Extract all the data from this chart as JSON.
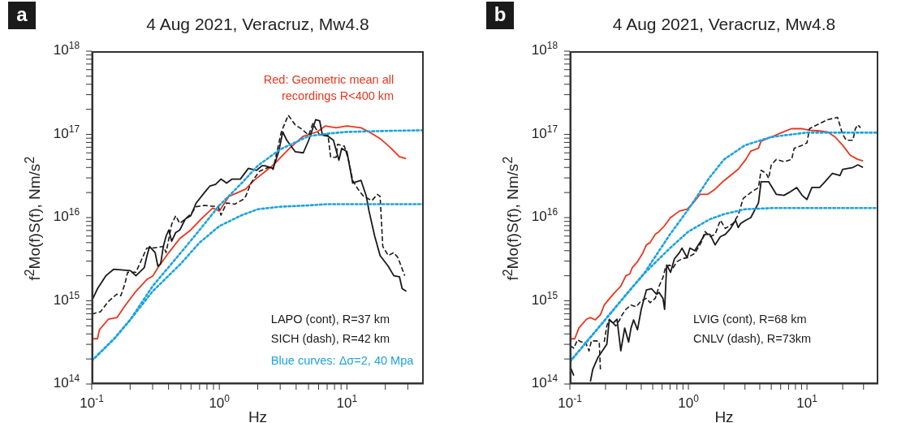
{
  "chart_data": [
    {
      "type": "line",
      "title": "4 Aug 2021, Veracruz, Mw4.8",
      "xlabel": "Hz",
      "ylabel": "f$^{2}$Mo(f)S(f), Nm/s$^{2}$",
      "log": "xy",
      "xlim": [
        0.1,
        40
      ],
      "ylim": [
        100000000000000.0,
        1e+18
      ],
      "xticks": [
        {
          "value": 0.1,
          "label": "10$^{-1}$"
        },
        {
          "value": 0.2,
          "label": null
        },
        {
          "value": 0.3,
          "label": null
        },
        {
          "value": 0.4,
          "label": null
        },
        {
          "value": 0.5,
          "label": null
        },
        {
          "value": 0.6,
          "label": null
        },
        {
          "value": 0.7,
          "label": null
        },
        {
          "value": 0.8,
          "label": null
        },
        {
          "value": 0.9,
          "label": null
        },
        {
          "value": 1,
          "label": "10$^{0}$"
        },
        {
          "value": 2,
          "label": null
        },
        {
          "value": 3,
          "label": null
        },
        {
          "value": 4,
          "label": null
        },
        {
          "value": 5,
          "label": null
        },
        {
          "value": 6,
          "label": null
        },
        {
          "value": 7,
          "label": null
        },
        {
          "value": 8,
          "label": null
        },
        {
          "value": 9,
          "label": null
        },
        {
          "value": 10,
          "label": "10$^{1}$"
        },
        {
          "value": 20,
          "label": null
        },
        {
          "value": 30,
          "label": null
        }
      ],
      "yticks": [
        {
          "value": 100000000000000.0,
          "label": "10$^{14}$"
        },
        {
          "value": 200000000000000.0,
          "label": null
        },
        {
          "value": 300000000000000.0,
          "label": null
        },
        {
          "value": 400000000000000.0,
          "label": null
        },
        {
          "value": 500000000000000.0,
          "label": null
        },
        {
          "value": 600000000000000.0,
          "label": null
        },
        {
          "value": 700000000000000.0,
          "label": null
        },
        {
          "value": 800000000000000.0,
          "label": null
        },
        {
          "value": 900000000000000.0,
          "label": null
        },
        {
          "value": 1000000000000000.0,
          "label": "10$^{15}$"
        },
        {
          "value": 2000000000000000.0,
          "label": null
        },
        {
          "value": 3000000000000000.0,
          "label": null
        },
        {
          "value": 4000000000000000.0,
          "label": null
        },
        {
          "value": 5000000000000000.0,
          "label": null
        },
        {
          "value": 6000000000000000.0,
          "label": null
        },
        {
          "value": 7000000000000000.0,
          "label": null
        },
        {
          "value": 8000000000000000.0,
          "label": null
        },
        {
          "value": 9000000000000000.0,
          "label": null
        },
        {
          "value": 1e+16,
          "label": "10$^{16}$"
        },
        {
          "value": 2e+16,
          "label": null
        },
        {
          "value": 3e+16,
          "label": null
        },
        {
          "value": 4e+16,
          "label": null
        },
        {
          "value": 5e+16,
          "label": null
        },
        {
          "value": 6e+16,
          "label": null
        },
        {
          "value": 7e+16,
          "label": null
        },
        {
          "value": 8e+16,
          "label": null
        },
        {
          "value": 9e+16,
          "label": null
        },
        {
          "value": 1e+17,
          "label": "10$^{17}$"
        },
        {
          "value": 2e+17,
          "label": null
        },
        {
          "value": 3e+17,
          "label": null
        },
        {
          "value": 4e+17,
          "label": null
        },
        {
          "value": 5e+17,
          "label": null
        },
        {
          "value": 6e+17,
          "label": null
        },
        {
          "value": 7e+17,
          "label": null
        },
        {
          "value": 8e+17,
          "label": null
        },
        {
          "value": 9e+17,
          "label": null
        },
        {
          "value": 1e+18,
          "label": "10$^{18}$"
        }
      ],
      "annotations": [
        "a",
        "Red: Geometric mean all recordings R<400 km",
        "LAPO (cont), R=37 km",
        "SICH (dash), R=42 km",
        "Blue curves: Δσ=2, 40 Mpa"
      ],
      "series": [
        {
          "color": "#e8361f",
          "line_style": "solid",
          "x": [
            0.1,
            0.111,
            0.115,
            0.135,
            0.158,
            0.182,
            0.222,
            0.27,
            0.302,
            0.33,
            0.402,
            0.49,
            0.597,
            0.73,
            0.887,
            1.0,
            1.19,
            1.61,
            1.87,
            2.51,
            2.77,
            3.55,
            4.55,
            5.82,
            6.76,
            8.24,
            10.0,
            12.9,
            14.9,
            18.2,
            22.2,
            25.7,
            29.1
          ],
          "values": [
            350000000000000.0,
            350000000000000.0,
            450000000000000.0,
            600000000000000.0,
            630000000000000.0,
            870000000000000.0,
            1300000000000000.0,
            1800000000000000.0,
            2000000000000000.0,
            2500000000000000.0,
            3800000000000000.0,
            5600000000000000.0,
            7100000000000000.0,
            9800000000000000.0,
            1.3e+16,
            1.2e+16,
            1.8e+16,
            2.2e+16,
            2.8e+16,
            4e+16,
            4.6e+16,
            6.8e+16,
            9.5e+16,
            1.07e+17,
            1.26e+17,
            1.2e+17,
            1.26e+17,
            1.2e+17,
            1.07e+17,
            8.9e+16,
            6.8e+16,
            5.4e+16,
            5.1e+16
          ]
        },
        {
          "color": "#1a1a1a",
          "line_style": "solid",
          "x": [
            0.1,
            0.111,
            0.129,
            0.149,
            0.201,
            0.222,
            0.258,
            0.27,
            0.284,
            0.314,
            0.33,
            0.347,
            0.364,
            0.383,
            0.402,
            0.423,
            0.455,
            0.49,
            0.541,
            0.597,
            0.659,
            0.765,
            0.845,
            0.933,
            1.03,
            1.14,
            1.26,
            1.46,
            1.69,
            1.96,
            2.16,
            2.27,
            2.64,
            2.92,
            3.14,
            3.38,
            3.93,
            4.55,
            5.02,
            5.69,
            6.12,
            6.43,
            7.11,
            7.84,
            8.65,
            9.1,
            10.0,
            11.1,
            12.9,
            14.2,
            14.9,
            16.5,
            18.2,
            21.1,
            23.3,
            25.8,
            27.1,
            29.2
          ],
          "values": [
            1000000000000000.0,
            1400000000000000.0,
            2000000000000000.0,
            2400000000000000.0,
            2300000000000000.0,
            2000000000000000.0,
            2500000000000000.0,
            3400000000000000.0,
            4500000000000000.0,
            3800000000000000.0,
            2600000000000000.0,
            2800000000000000.0,
            4500000000000000.0,
            6000000000000000.0,
            7100000000000000.0,
            5200000000000000.0,
            6600000000000000.0,
            7100000000000000.0,
            9600000000000000.0,
            1.05e+16,
            1.5e+16,
            2e+16,
            2.4e+16,
            2.5e+16,
            2.9e+16,
            2.6e+16,
            2.9e+16,
            2.9e+16,
            3.9e+16,
            3.7e+16,
            4.2e+16,
            4.2e+16,
            3.9e+16,
            6.2e+16,
            1.07e+17,
            8.5e+16,
            6.2e+16,
            6e+16,
            8.5e+16,
            1.5e+17,
            1.45e+17,
            9.8e+16,
            9.5e+16,
            8.5e+16,
            4.9e+16,
            6.8e+16,
            6.2e+16,
            2.6e+16,
            2.8e+16,
            1.8e+16,
            1.2e+16,
            6000000000000000.0,
            3500000000000000.0,
            2600000000000000.0,
            2000000000000000.0,
            1950000000000000.0,
            1400000000000000.0,
            1300000000000000.0
          ]
        },
        {
          "color": "#1a1a1a",
          "line_style": "dashed",
          "x": [
            0.1,
            0.117,
            0.135,
            0.157,
            0.169,
            0.182,
            0.191,
            0.222,
            0.27,
            0.298,
            0.364,
            0.383,
            0.423,
            0.455,
            0.49,
            0.541,
            0.597,
            0.659,
            0.765,
            0.982,
            1.03,
            1.14,
            1.32,
            1.53,
            1.61,
            1.77,
            2.06,
            2.51,
            2.64,
            3.06,
            3.47,
            3.93,
            4.45,
            5.02,
            5.41,
            6.12,
            7.11,
            7.46,
            8.24,
            8.44,
            9.55,
            10.3,
            11.1,
            12.2,
            13.5,
            15.7,
            17.3,
            18.2,
            19.1,
            21.1,
            23.3,
            25.1,
            28.4
          ],
          "values": [
            690000000000000.0,
            740000000000000.0,
            980000000000000.0,
            1200000000000000.0,
            1150000000000000.0,
            1600000000000000.0,
            2200000000000000.0,
            2200000000000000.0,
            4300000000000000.0,
            4300000000000000.0,
            4500000000000000.0,
            3800000000000000.0,
            8300000000000000.0,
            1.05e+16,
            8500000000000000.0,
            9600000000000000.0,
            1.1e+16,
            1.35e+16,
            1.4e+16,
            1.35e+16,
            1.07e+16,
            1.5e+16,
            1.45e+16,
            1.65e+16,
            1.8e+16,
            2.6e+16,
            3.6e+16,
            4.1e+16,
            3.8e+16,
            1.07e+17,
            1.7e+17,
            1.3e+17,
            1.15e+17,
            9.8e+16,
            1.35e+17,
            9.8e+16,
            9.8e+16,
            5.3e+16,
            5.3e+16,
            7.6e+16,
            7.2e+16,
            4.9e+16,
            2.8e+16,
            2.2e+16,
            1.8e+16,
            1.6e+16,
            1.9e+16,
            1.8e+16,
            4500000000000000.0,
            3500000000000000.0,
            3800000000000000.0,
            3300000000000000.0,
            2000000000000000.0
          ]
        },
        {
          "color": "#1ca3e0",
          "line_style": "dotted",
          "x": [
            0.1,
            0.15,
            0.2,
            0.3,
            0.5,
            0.7,
            1,
            1.5,
            2,
            3,
            5,
            7,
            10,
            20,
            40
          ],
          "values": [
            190000000000000.0,
            350000000000000.0,
            590000000000000.0,
            1500000000000000.0,
            3800000000000000.0,
            7100000000000000.0,
            1.4e+16,
            2.6e+16,
            4.2e+16,
            6.6e+16,
            9.5e+16,
            1.02e+17,
            1.07e+17,
            1.1e+17,
            1.12e+17
          ]
        },
        {
          "color": "#1ca3e0",
          "line_style": "dotted",
          "x": [
            0.1,
            0.15,
            0.2,
            0.3,
            0.5,
            0.7,
            1,
            1.5,
            2,
            3,
            5,
            7,
            10,
            20,
            40
          ],
          "values": [
            190000000000000.0,
            350000000000000.0,
            590000000000000.0,
            1300000000000000.0,
            2800000000000000.0,
            5000000000000000.0,
            7900000000000000.0,
            1.07e+16,
            1.26e+16,
            1.35e+16,
            1.4e+16,
            1.45e+16,
            1.45e+16,
            1.45e+16,
            1.45e+16
          ]
        }
      ]
    },
    {
      "type": "line",
      "title": "4 Aug 2021, Veracruz, Mw4.8",
      "xlabel": "Hz",
      "ylabel": "f$^{2}$Mo(f)S(f), Nm/s$^{2}$",
      "log": "xy",
      "xlim": [
        0.1,
        40
      ],
      "ylim": [
        100000000000000.0,
        1e+18
      ],
      "xticks": [
        {
          "value": 0.1,
          "label": "10$^{-1}$"
        },
        {
          "value": 0.2,
          "label": null
        },
        {
          "value": 0.3,
          "label": null
        },
        {
          "value": 0.4,
          "label": null
        },
        {
          "value": 0.5,
          "label": null
        },
        {
          "value": 0.6,
          "label": null
        },
        {
          "value": 0.7,
          "label": null
        },
        {
          "value": 0.8,
          "label": null
        },
        {
          "value": 0.9,
          "label": null
        },
        {
          "value": 1,
          "label": "10$^{0}$"
        },
        {
          "value": 2,
          "label": null
        },
        {
          "value": 3,
          "label": null
        },
        {
          "value": 4,
          "label": null
        },
        {
          "value": 5,
          "label": null
        },
        {
          "value": 6,
          "label": null
        },
        {
          "value": 7,
          "label": null
        },
        {
          "value": 8,
          "label": null
        },
        {
          "value": 9,
          "label": null
        },
        {
          "value": 10,
          "label": "10$^{1}$"
        },
        {
          "value": 20,
          "label": null
        },
        {
          "value": 30,
          "label": null
        }
      ],
      "yticks": [
        {
          "value": 100000000000000.0,
          "label": "10$^{14}$"
        },
        {
          "value": 200000000000000.0,
          "label": null
        },
        {
          "value": 300000000000000.0,
          "label": null
        },
        {
          "value": 400000000000000.0,
          "label": null
        },
        {
          "value": 500000000000000.0,
          "label": null
        },
        {
          "value": 600000000000000.0,
          "label": null
        },
        {
          "value": 700000000000000.0,
          "label": null
        },
        {
          "value": 800000000000000.0,
          "label": null
        },
        {
          "value": 900000000000000.0,
          "label": null
        },
        {
          "value": 1000000000000000.0,
          "label": "10$^{15}$"
        },
        {
          "value": 2000000000000000.0,
          "label": null
        },
        {
          "value": 3000000000000000.0,
          "label": null
        },
        {
          "value": 4000000000000000.0,
          "label": null
        },
        {
          "value": 5000000000000000.0,
          "label": null
        },
        {
          "value": 6000000000000000.0,
          "label": null
        },
        {
          "value": 7000000000000000.0,
          "label": null
        },
        {
          "value": 8000000000000000.0,
          "label": null
        },
        {
          "value": 9000000000000000.0,
          "label": null
        },
        {
          "value": 1e+16,
          "label": "10$^{16}$"
        },
        {
          "value": 2e+16,
          "label": null
        },
        {
          "value": 3e+16,
          "label": null
        },
        {
          "value": 4e+16,
          "label": null
        },
        {
          "value": 5e+16,
          "label": null
        },
        {
          "value": 6e+16,
          "label": null
        },
        {
          "value": 7e+16,
          "label": null
        },
        {
          "value": 8e+16,
          "label": null
        },
        {
          "value": 9e+16,
          "label": null
        },
        {
          "value": 1e+17,
          "label": "10$^{17}$"
        },
        {
          "value": 2e+17,
          "label": null
        },
        {
          "value": 3e+17,
          "label": null
        },
        {
          "value": 4e+17,
          "label": null
        },
        {
          "value": 5e+17,
          "label": null
        },
        {
          "value": 6e+17,
          "label": null
        },
        {
          "value": 7e+17,
          "label": null
        },
        {
          "value": 8e+17,
          "label": null
        },
        {
          "value": 9e+17,
          "label": null
        },
        {
          "value": 1e+18,
          "label": "10$^{18}$"
        }
      ],
      "annotations": [
        "b",
        "LVIG (cont), R=68 km",
        "CNLV (dash), R=73km"
      ],
      "series": [
        {
          "color": "#e8361f",
          "line_style": "solid",
          "x": [
            0.1,
            0.11,
            0.119,
            0.138,
            0.149,
            0.164,
            0.181,
            0.195,
            0.232,
            0.269,
            0.297,
            0.32,
            0.336,
            0.372,
            0.41,
            0.442,
            0.475,
            0.525,
            0.566,
            0.625,
            0.707,
            0.841,
            0.975,
            1.1,
            1.25,
            1.45,
            1.68,
            1.95,
            2.63,
            3.05,
            3.36,
            3.9,
            4.1,
            5.0,
            6.1,
            7.4,
            9.1,
            10.5,
            12.8,
            14.9,
            17.3,
            20,
            23.2,
            26.9,
            29.7
          ],
          "values": [
            350000000000000.0,
            350000000000000.0,
            470000000000000.0,
            600000000000000.0,
            630000000000000.0,
            590000000000000.0,
            680000000000000.0,
            890000000000000.0,
            1200000000000000.0,
            1500000000000000.0,
            2000000000000000.0,
            2100000000000000.0,
            2500000000000000.0,
            2950000000000000.0,
            3700000000000000.0,
            4700000000000000.0,
            5000000000000000.0,
            6300000000000000.0,
            6800000000000000.0,
            7900000000000000.0,
            1e+16,
            1.2e+16,
            1.26e+16,
            1.5e+16,
            1.9e+16,
            1.9e+16,
            2.2e+16,
            2.7e+16,
            3.8e+16,
            5e+16,
            6.3e+16,
            6.8e+16,
            8.3e+16,
            9.3e+16,
            1.05e+17,
            1.17e+17,
            1.17e+17,
            1.12e+17,
            1.1e+17,
            1.07e+17,
            9.3e+16,
            7.4e+16,
            5.6e+16,
            5e+16,
            4.8e+16
          ]
        },
        {
          "color": "#1a1a1a",
          "line_style": "solid",
          "x": [
            0.1,
            0.108,
            0.116,
            0.149,
            0.156,
            0.173,
            0.195,
            0.205,
            0.215,
            0.232,
            0.25,
            0.269,
            0.29,
            0.313,
            0.328,
            0.345,
            0.372,
            0.4,
            0.442,
            0.488,
            0.538,
            0.566,
            0.61,
            0.63,
            0.656,
            0.707,
            0.762,
            0.841,
            0.883,
            0.975,
            1.03,
            1.13,
            1.25,
            1.38,
            1.52,
            1.68,
            1.86,
            2.05,
            2.27,
            2.5,
            2.63,
            2.76,
            3.05,
            3.36,
            3.9,
            4.1,
            4.75,
            5.52,
            6.4,
            7.06,
            8.2,
            9.1,
            10,
            11,
            12.8,
            14.2,
            16.4,
            19,
            20,
            24.4,
            26.9,
            29.7
          ],
          "values": [
            165000000000000.0,
            126000000000000.0,
            null,
            107000000000000.0,
            150000000000000.0,
            210000000000000.0,
            270000000000000.0,
            300000000000000.0,
            590000000000000.0,
            540000000000000.0,
            600000000000000.0,
            250000000000000.0,
            470000000000000.0,
            320000000000000.0,
            470000000000000.0,
            590000000000000.0,
            450000000000000.0,
            790000000000000.0,
            1350000000000000.0,
            1400000000000000.0,
            1200000000000000.0,
            1260000000000000.0,
            1070000000000000.0,
            790000000000000.0,
            2700000000000000.0,
            2200000000000000.0,
            3200000000000000.0,
            3800000000000000.0,
            4300000000000000.0,
            3300000000000000.0,
            4300000000000000.0,
            4000000000000000.0,
            5000000000000000.0,
            6300000000000000.0,
            6300000000000000.0,
            4700000000000000.0,
            5900000000000000.0,
            6300000000000000.0,
            7400000000000000.0,
            9300000000000000.0,
            7600000000000000.0,
            8500000000000000.0,
            9300000000000000.0,
            1e+16,
            1.5e+16,
            2.7e+16,
            2.7e+16,
            1.9e+16,
            1.85e+16,
            2e+16,
            2.3e+16,
            1.85e+16,
            1.65e+16,
            2.3e+16,
            2.3e+16,
            2.7e+16,
            3.4e+16,
            3.2e+16,
            3.8e+16,
            4e+16,
            4.3e+16,
            4e+16
          ]
        },
        {
          "color": "#1a1a1a",
          "line_style": "dashed",
          "x": [
            0.1,
            0.108,
            0.116,
            0.125,
            0.135,
            0.145,
            0.152,
            0.168,
            0.177,
            0.181,
            0.186,
            0.195,
            0.205,
            0.215,
            0.244,
            0.263,
            0.276,
            0.297,
            0.328,
            0.362,
            0.4,
            0.442,
            0.475,
            0.525,
            0.566,
            0.61,
            0.64,
            0.69,
            0.743,
            0.8,
            0.883,
            0.975,
            1.13,
            1.28,
            1.38,
            1.52,
            1.68,
            1.86,
            2.05,
            2.38,
            2.63,
            2.9,
            3.36,
            3.9,
            4.1,
            4.53,
            4.75,
            5,
            5.52,
            6.4,
            7.43,
            7.8,
            9.1,
            10,
            10.5,
            11.6,
            12.8,
            14.9,
            18.1,
            20,
            21.5,
            24.4,
            25.6,
            26.9,
            28.3
          ],
          "values": [
            290000000000000.0,
            270000000000000.0,
            340000000000000.0,
            320000000000000.0,
            320000000000000.0,
            250000000000000.0,
            330000000000000.0,
            330000000000000.0,
            320000000000000.0,
            150000000000000.0,
            null,
            320000000000000.0,
            500000000000000.0,
            600000000000000.0,
            500000000000000.0,
            590000000000000.0,
            680000000000000.0,
            790000000000000.0,
            890000000000000.0,
            850000000000000.0,
            1000000000000000.0,
            1070000000000000.0,
            950000000000000.0,
            1070000000000000.0,
            1500000000000000.0,
            1900000000000000.0,
            2500000000000000.0,
            2700000000000000.0,
            2500000000000000.0,
            2950000000000000.0,
            3200000000000000.0,
            3300000000000000.0,
            3700000000000000.0,
            5000000000000000.0,
            6800000000000000.0,
            5900000000000000.0,
            6300000000000000.0,
            9300000000000000.0,
            7400000000000000.0,
            8500000000000000.0,
            1.07e+16,
            1.7e+16,
            2e+16,
            2.3e+16,
            3.7e+16,
            3.4e+16,
            2.95e+16,
            4.3e+16,
            5e+16,
            4.7e+16,
            5e+16,
            6.8e+16,
            7.4e+16,
            7.9e+16,
            1.17e+17,
            1.26e+17,
            1.35e+17,
            1.5e+17,
            1.6e+17,
            1e+17,
            8.5e+16,
            8.5e+16,
            1.17e+17,
            1.3e+17,
            1.2e+17
          ]
        },
        {
          "color": "#1ca3e0",
          "line_style": "dotted",
          "x": [
            0.1,
            0.2,
            0.3,
            0.42,
            0.7,
            1,
            1.5,
            2,
            3,
            5,
            10,
            20,
            40
          ],
          "values": [
            185000000000000.0,
            600000000000000.0,
            1200000000000000.0,
            2100000000000000.0,
            6300000000000000.0,
            1.26e+16,
            3e+16,
            5e+16,
            7.4e+16,
            9.3e+16,
            1.05e+17,
            1.05e+17,
            1.05e+17
          ]
        },
        {
          "color": "#1ca3e0",
          "line_style": "dotted",
          "x": [
            0.1,
            0.2,
            0.3,
            0.42,
            0.7,
            1,
            1.5,
            2,
            3,
            5,
            10,
            20,
            40
          ],
          "values": [
            185000000000000.0,
            600000000000000.0,
            1200000000000000.0,
            2100000000000000.0,
            4300000000000000.0,
            6800000000000000.0,
            9500000000000000.0,
            1.1e+16,
            1.26e+16,
            1.3e+16,
            1.3e+16,
            1.3e+16,
            1.3e+16
          ]
        }
      ]
    }
  ]
}
